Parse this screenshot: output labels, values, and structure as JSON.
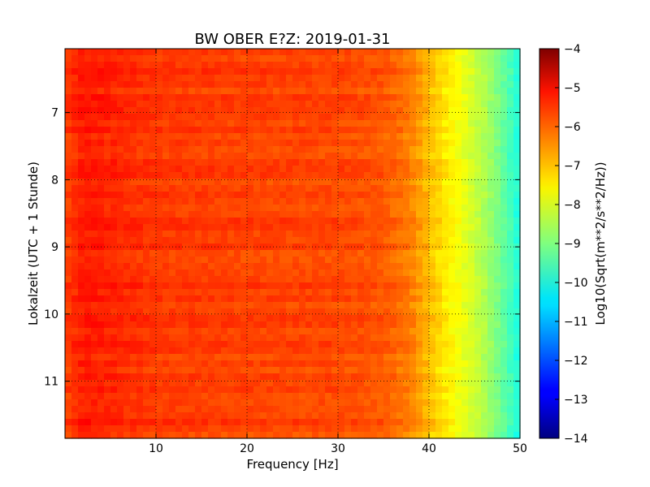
{
  "chart_data": {
    "type": "heatmap",
    "title": "BW OBER E?Z: 2019-01-31",
    "xlabel": "Frequency [Hz]",
    "ylabel": "Lokalzeit (UTC + 1 Stunde)",
    "xlim": [
      0,
      50
    ],
    "ylim": [
      11.85,
      6.05
    ],
    "y_inverted": true,
    "x_ticks": [
      10,
      20,
      30,
      40,
      50
    ],
    "x_tick_labels": [
      "10",
      "20",
      "30",
      "40",
      "50"
    ],
    "y_ticks": [
      7,
      8,
      9,
      10,
      11
    ],
    "y_tick_labels": [
      "7",
      "8",
      "9",
      "10",
      "11"
    ],
    "grid": true,
    "grid_style": "dotted",
    "colormap": "jet",
    "colorbar": {
      "label": "Log10(Sqrt(m**2/s**2/Hz))",
      "range": [
        -14,
        -4
      ],
      "ticks": [
        -4,
        -5,
        -6,
        -7,
        -8,
        -9,
        -10,
        -11,
        -12,
        -13,
        -14
      ],
      "tick_labels": [
        "−4",
        "−5",
        "−6",
        "−7",
        "−8",
        "−9",
        "−10",
        "−11",
        "−12",
        "−13",
        "−14"
      ]
    },
    "spectrum_profile": {
      "frequency_hz": [
        0,
        2,
        5,
        10,
        20,
        30,
        35,
        38,
        40,
        42,
        44,
        46,
        48,
        50
      ],
      "log10_amplitude": [
        -5.9,
        -5.5,
        -5.6,
        -5.8,
        -5.9,
        -5.95,
        -6.1,
        -6.5,
        -7.1,
        -7.6,
        -8.0,
        -8.5,
        -9.2,
        -10.0
      ]
    }
  }
}
